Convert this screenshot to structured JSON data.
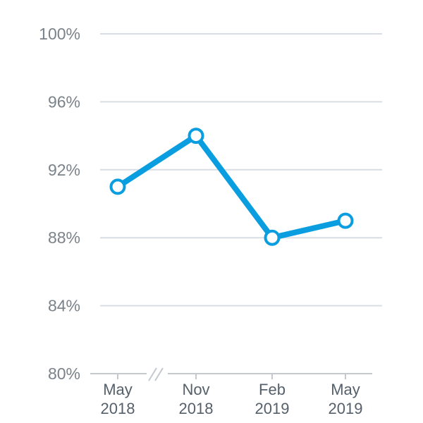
{
  "chart_data": {
    "type": "line",
    "title": "",
    "xlabel": "",
    "ylabel": "",
    "categories": [
      {
        "month": "May",
        "year": "2018"
      },
      {
        "month": "Nov",
        "year": "2018"
      },
      {
        "month": "Feb",
        "year": "2019"
      },
      {
        "month": "May",
        "year": "2019"
      }
    ],
    "x": [
      "2018-05",
      "2018-11",
      "2019-02",
      "2019-05"
    ],
    "values": [
      91,
      94,
      88,
      89
    ],
    "ylim": [
      80,
      100
    ],
    "yticks": [
      "80%",
      "84%",
      "88%",
      "92%",
      "96%",
      "100%"
    ],
    "ytick_values": [
      80,
      84,
      88,
      92,
      96,
      100
    ],
    "axis_break": "between-first-and-second",
    "grid": true,
    "legend": "none",
    "line_color": "#0a9ee0"
  }
}
